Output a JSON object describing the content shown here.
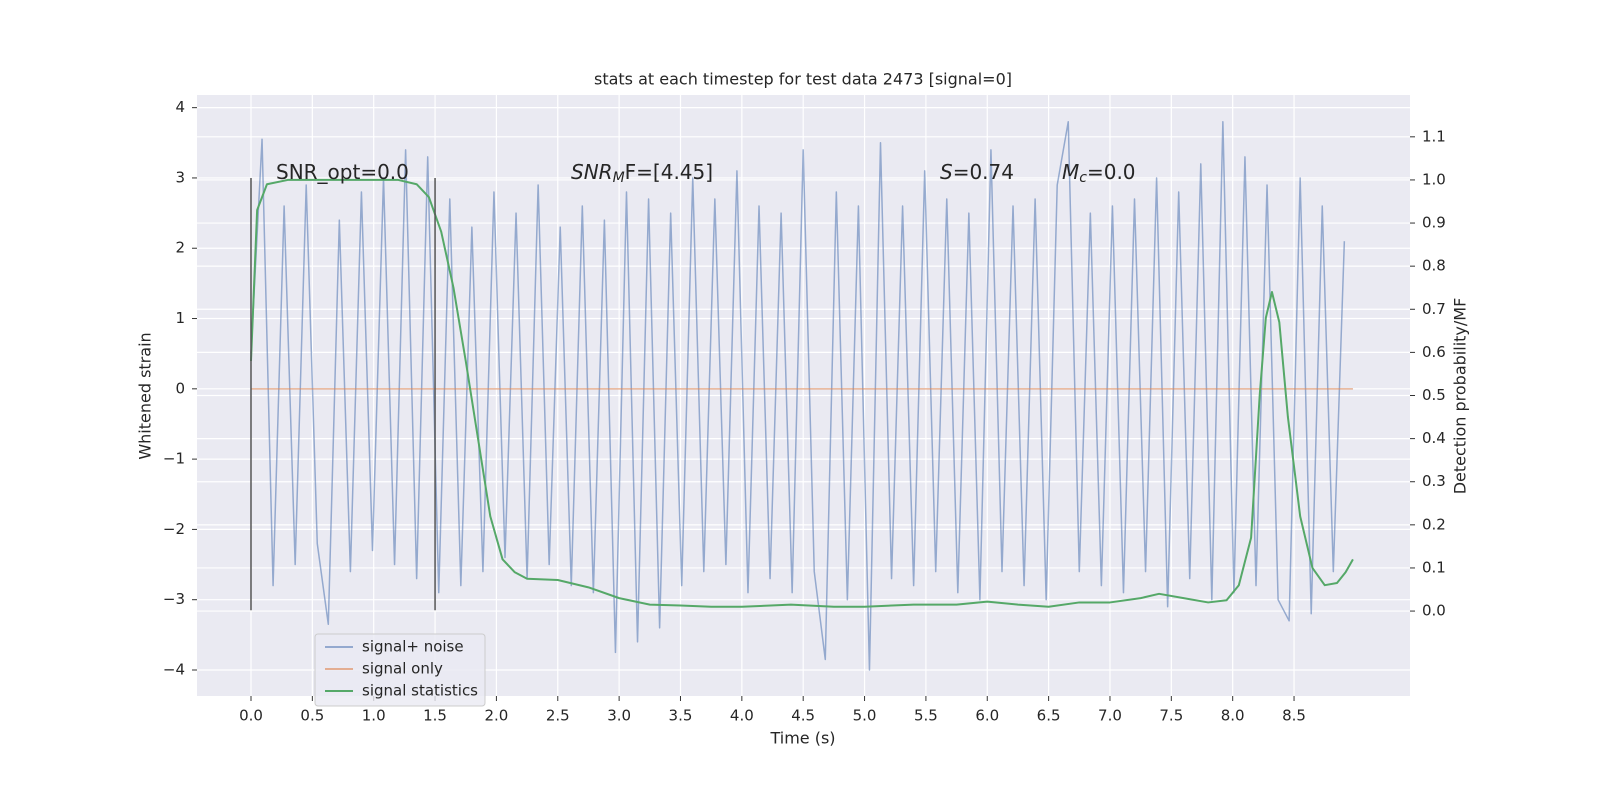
{
  "chart_data": {
    "type": "line",
    "title": "stats at each timestep for test data 2473 [signal=0]",
    "xlabel": "Time (s)",
    "ylabel": "Whitened strain",
    "y2label": "Detection probability/MF",
    "xlim": [
      -0.44,
      9.445
    ],
    "ylim": [
      -4.37,
      4.18
    ],
    "y2lim": [
      -0.197,
      1.197
    ],
    "xticks": [
      {
        "value": 0,
        "label": "0.0"
      },
      0.5,
      {
        "value": 1,
        "label": "1.0"
      },
      1.5,
      {
        "value": 2,
        "label": "2.0"
      },
      2.5,
      {
        "value": 3,
        "label": "3.0"
      },
      3.5,
      {
        "value": 4,
        "label": "4.0"
      },
      4.5,
      {
        "value": 5,
        "label": "5.0"
      },
      5.5,
      {
        "value": 6,
        "label": "6.0"
      },
      6.5,
      {
        "value": 7,
        "label": "7.0"
      },
      7.5,
      {
        "value": 8,
        "label": "8.0"
      },
      8.5
    ],
    "yticks": [
      {
        "value": -4,
        "label": "−4"
      },
      {
        "value": -3,
        "label": "−3"
      },
      {
        "value": -2,
        "label": "−2"
      },
      {
        "value": -1,
        "label": "−1"
      },
      0,
      1,
      2,
      3,
      4
    ],
    "y2ticks": [
      {
        "value": 0,
        "label": "0.0"
      },
      0.1,
      0.2,
      0.3,
      0.4,
      0.5,
      0.6,
      0.7,
      0.8,
      0.9,
      {
        "value": 1,
        "label": "1.0"
      },
      1.1
    ],
    "grid": true,
    "legend": "lower left",
    "annotations": [
      [
        "SNR_opt=0.0"
      ],
      [
        "SNR",
        "M",
        "F=[4.45]"
      ],
      [
        "S",
        "=0.74"
      ],
      [
        "M",
        "c",
        "=0.0"
      ]
    ],
    "vlines": {
      "x": [
        0,
        1.5
      ],
      "ymin": -3.15,
      "ymax": 3.0,
      "color": "#555555"
    },
    "series": [
      {
        "name": "signal+ noise",
        "color": "#4c72b0",
        "alpha": 0.55,
        "x": [
          0,
          0.09,
          0.18,
          0.27,
          0.36,
          0.45,
          0.54,
          0.63,
          0.72,
          0.81,
          0.9,
          0.99,
          1.08,
          1.17,
          1.26,
          1.35,
          1.44,
          1.53,
          1.62,
          1.71,
          1.8,
          1.89,
          1.98,
          2.07,
          2.16,
          2.25,
          2.34,
          2.43,
          2.52,
          2.61,
          2.7,
          2.79,
          2.88,
          2.97,
          3.06,
          3.15,
          3.24,
          3.33,
          3.42,
          3.51,
          3.6,
          3.69,
          3.78,
          3.87,
          3.96,
          4.05,
          4.14,
          4.23,
          4.32,
          4.41,
          4.5,
          4.59,
          4.68,
          4.77,
          4.86,
          4.95,
          5.04,
          5.13,
          5.22,
          5.31,
          5.4,
          5.49,
          5.58,
          5.67,
          5.76,
          5.85,
          5.94,
          6.03,
          6.12,
          6.21,
          6.3,
          6.39,
          6.48,
          6.57,
          6.66,
          6.75,
          6.84,
          6.93,
          7.02,
          7.11,
          7.2,
          7.29,
          7.38,
          7.47,
          7.56,
          7.65,
          7.74,
          7.83,
          7.92,
          8.01,
          8.1,
          8.19,
          8.28,
          8.37,
          8.46,
          8.55,
          8.64,
          8.73,
          8.82,
          8.91
        ],
        "values": [
          0.5,
          3.55,
          -2.8,
          2.6,
          -2.5,
          2.9,
          -2.2,
          -3.35,
          2.4,
          -2.6,
          2.8,
          -2.3,
          3.0,
          -2.5,
          3.4,
          -2.7,
          3.3,
          -2.9,
          2.7,
          -2.8,
          2.3,
          -2.6,
          2.8,
          -2.4,
          2.5,
          -2.7,
          2.9,
          -2.5,
          2.3,
          -2.8,
          2.6,
          -2.9,
          2.4,
          -3.75,
          2.8,
          -3.6,
          2.7,
          -3.4,
          2.5,
          -2.8,
          3.0,
          -2.6,
          2.7,
          -2.5,
          3.1,
          -2.9,
          2.6,
          -2.7,
          2.5,
          -2.9,
          3.4,
          -2.6,
          -3.85,
          2.8,
          -3.0,
          2.6,
          -4.0,
          3.5,
          -2.7,
          2.6,
          -2.8,
          3.1,
          -2.6,
          2.7,
          -2.9,
          2.5,
          -3.0,
          3.4,
          -2.6,
          2.6,
          -2.8,
          2.7,
          -3.0,
          2.9,
          3.8,
          -2.6,
          2.5,
          -2.8,
          2.6,
          -2.9,
          2.7,
          -2.6,
          3.0,
          -3.1,
          2.8,
          -2.7,
          3.2,
          -3.0,
          3.8,
          -2.9,
          3.3,
          -2.8,
          2.9,
          -3.0,
          -3.3,
          3.0,
          -3.2,
          2.6,
          -2.6,
          2.1
        ]
      },
      {
        "name": "signal only",
        "color": "#dd8452",
        "alpha": 0.6,
        "x": [
          0,
          8.98
        ],
        "values": [
          0,
          0
        ]
      },
      {
        "name": "signal statistics",
        "color": "#55a868",
        "alpha": 1,
        "axis": "y2",
        "x": [
          0,
          0.05,
          0.13,
          0.3,
          1.2,
          1.35,
          1.45,
          1.55,
          1.65,
          1.75,
          1.85,
          1.95,
          2.05,
          2.15,
          2.25,
          2.5,
          2.75,
          3.0,
          3.25,
          3.5,
          3.75,
          4.0,
          4.4,
          4.75,
          5.0,
          5.4,
          5.75,
          6.0,
          6.25,
          6.5,
          6.75,
          7.0,
          7.25,
          7.4,
          7.6,
          7.8,
          7.95,
          8.05,
          8.15,
          8.22,
          8.27,
          8.32,
          8.38,
          8.45,
          8.55,
          8.65,
          8.75,
          8.85,
          8.92,
          8.98
        ],
        "values": [
          0.58,
          0.93,
          0.99,
          1.0,
          1.0,
          0.99,
          0.96,
          0.88,
          0.75,
          0.58,
          0.4,
          0.22,
          0.12,
          0.09,
          0.075,
          0.072,
          0.055,
          0.03,
          0.015,
          0.013,
          0.01,
          0.01,
          0.015,
          0.01,
          0.01,
          0.015,
          0.015,
          0.022,
          0.015,
          0.01,
          0.02,
          0.02,
          0.03,
          0.04,
          0.03,
          0.02,
          0.025,
          0.06,
          0.17,
          0.5,
          0.68,
          0.74,
          0.67,
          0.45,
          0.22,
          0.1,
          0.06,
          0.065,
          0.09,
          0.12
        ]
      }
    ]
  }
}
